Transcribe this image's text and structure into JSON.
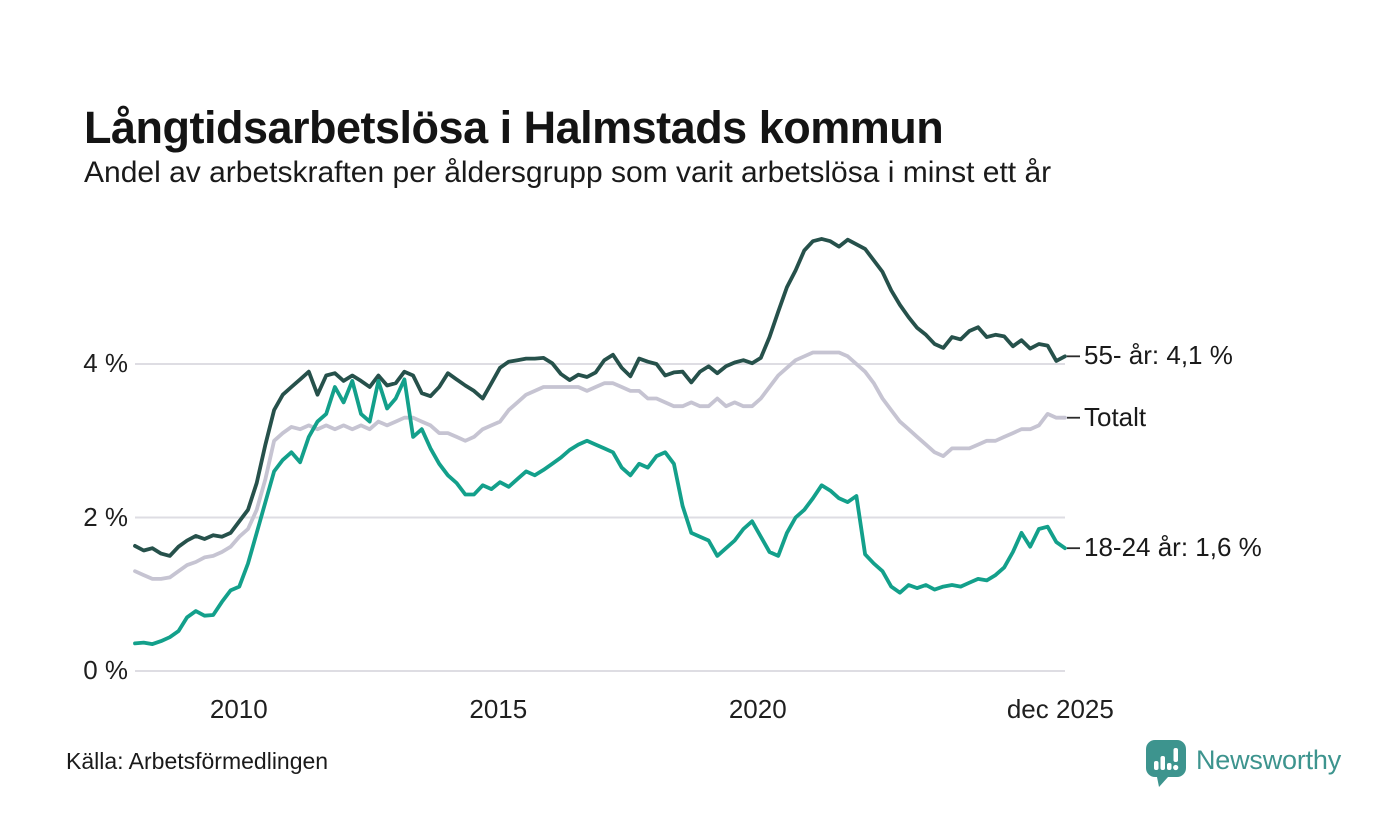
{
  "header": {
    "title": "Långtidsarbetslösa i Halmstads kommun",
    "subtitle": "Andel av arbetskraften per åldersgrupp som varit arbetslösa i minst ett år"
  },
  "footer": {
    "source": "Källa: Arbetsförmedlingen",
    "brand": "Newsworthy"
  },
  "colors": {
    "text": "#1a1a1a",
    "gridline": "#dedde3",
    "label_tick": "#2b2b2b",
    "brand_teal": "#3d948e",
    "series_55plus": "#26514b",
    "series_total": "#c6c4d2",
    "series_young": "#13a08b"
  },
  "chart_data": {
    "type": "line",
    "title": "Långtidsarbetslösa i Halmstads kommun",
    "subtitle": "Andel av arbetskraften per åldersgrupp som varit arbetslösa i minst ett år",
    "source": "Källa: Arbetsförmedlingen",
    "x_start": 2008.0,
    "x_end": 2025.92,
    "x_ticks": [
      {
        "label": "2010",
        "year": 2010
      },
      {
        "label": "2015",
        "year": 2015
      },
      {
        "label": "2020",
        "year": 2020
      },
      {
        "label": "dec 2025",
        "year": 2025.83
      }
    ],
    "y_ticks": [
      {
        "label": "0 %",
        "value": 0
      },
      {
        "label": "2 %",
        "value": 2
      },
      {
        "label": "4 %",
        "value": 4
      }
    ],
    "ylim": [
      0,
      5.9
    ],
    "grid": "horizontal-only",
    "legend_position": "right-end-labels",
    "unit": "%",
    "series": [
      {
        "name": "Totalt",
        "end_label": "Totalt",
        "end_value": 3.3,
        "color": "#c6c4d2",
        "values": [
          1.3,
          1.25,
          1.2,
          1.2,
          1.22,
          1.3,
          1.38,
          1.42,
          1.48,
          1.5,
          1.55,
          1.62,
          1.75,
          1.85,
          2.1,
          2.5,
          3.0,
          3.1,
          3.18,
          3.15,
          3.2,
          3.15,
          3.2,
          3.15,
          3.2,
          3.15,
          3.2,
          3.15,
          3.25,
          3.2,
          3.25,
          3.3,
          3.3,
          3.25,
          3.2,
          3.1,
          3.1,
          3.05,
          3.0,
          3.05,
          3.15,
          3.2,
          3.25,
          3.4,
          3.5,
          3.6,
          3.65,
          3.7,
          3.7,
          3.7,
          3.7,
          3.7,
          3.65,
          3.7,
          3.75,
          3.75,
          3.7,
          3.65,
          3.65,
          3.55,
          3.55,
          3.5,
          3.45,
          3.45,
          3.5,
          3.45,
          3.45,
          3.55,
          3.45,
          3.5,
          3.45,
          3.45,
          3.55,
          3.7,
          3.85,
          3.95,
          4.05,
          4.1,
          4.15,
          4.15,
          4.15,
          4.15,
          4.1,
          4.0,
          3.9,
          3.75,
          3.55,
          3.4,
          3.25,
          3.15,
          3.05,
          2.95,
          2.85,
          2.8,
          2.9,
          2.9,
          2.9,
          2.95,
          3.0,
          3.0,
          3.05,
          3.1,
          3.15,
          3.15,
          3.2,
          3.35,
          3.3,
          3.3
        ]
      },
      {
        "name": "55- år",
        "end_label": "55- år: 4,1 %",
        "end_value": 4.1,
        "color": "#26514b",
        "values": [
          1.63,
          1.57,
          1.6,
          1.53,
          1.5,
          1.62,
          1.7,
          1.76,
          1.72,
          1.77,
          1.75,
          1.8,
          1.95,
          2.1,
          2.45,
          2.95,
          3.4,
          3.6,
          3.7,
          3.8,
          3.9,
          3.6,
          3.85,
          3.88,
          3.78,
          3.85,
          3.78,
          3.7,
          3.85,
          3.72,
          3.75,
          3.9,
          3.85,
          3.62,
          3.58,
          3.7,
          3.88,
          3.8,
          3.72,
          3.65,
          3.55,
          3.75,
          3.95,
          4.03,
          4.05,
          4.07,
          4.07,
          4.08,
          4.01,
          3.87,
          3.79,
          3.86,
          3.83,
          3.89,
          4.05,
          4.12,
          3.95,
          3.84,
          4.07,
          4.03,
          4.0,
          3.85,
          3.89,
          3.9,
          3.76,
          3.9,
          3.97,
          3.88,
          3.97,
          4.02,
          4.05,
          4.01,
          4.08,
          4.35,
          4.68,
          5.0,
          5.22,
          5.48,
          5.6,
          5.63,
          5.6,
          5.53,
          5.62,
          5.56,
          5.5,
          5.35,
          5.2,
          4.96,
          4.77,
          4.61,
          4.47,
          4.38,
          4.26,
          4.21,
          4.35,
          4.32,
          4.43,
          4.48,
          4.35,
          4.38,
          4.36,
          4.23,
          4.31,
          4.2,
          4.26,
          4.24,
          4.04,
          4.1
        ]
      },
      {
        "name": "18-24 år",
        "end_label": "18-24 år: 1,6 %",
        "end_value": 1.6,
        "color": "#13a08b",
        "values": [
          0.36,
          0.37,
          0.35,
          0.39,
          0.44,
          0.52,
          0.7,
          0.78,
          0.72,
          0.73,
          0.9,
          1.05,
          1.1,
          1.4,
          1.8,
          2.2,
          2.6,
          2.75,
          2.85,
          2.72,
          3.05,
          3.25,
          3.35,
          3.7,
          3.5,
          3.78,
          3.35,
          3.25,
          3.78,
          3.42,
          3.55,
          3.8,
          3.05,
          3.15,
          2.9,
          2.7,
          2.55,
          2.45,
          2.3,
          2.3,
          2.42,
          2.37,
          2.46,
          2.4,
          2.5,
          2.6,
          2.55,
          2.62,
          2.7,
          2.78,
          2.88,
          2.95,
          3.0,
          2.95,
          2.9,
          2.85,
          2.65,
          2.55,
          2.7,
          2.65,
          2.8,
          2.85,
          2.7,
          2.15,
          1.8,
          1.75,
          1.7,
          1.5,
          1.6,
          1.7,
          1.85,
          1.95,
          1.75,
          1.55,
          1.5,
          1.8,
          2.0,
          2.1,
          2.25,
          2.42,
          2.35,
          2.25,
          2.2,
          2.28,
          1.52,
          1.4,
          1.3,
          1.1,
          1.02,
          1.12,
          1.08,
          1.12,
          1.06,
          1.1,
          1.12,
          1.1,
          1.15,
          1.2,
          1.18,
          1.25,
          1.35,
          1.55,
          1.8,
          1.62,
          1.85,
          1.88,
          1.68,
          1.6
        ]
      }
    ]
  }
}
